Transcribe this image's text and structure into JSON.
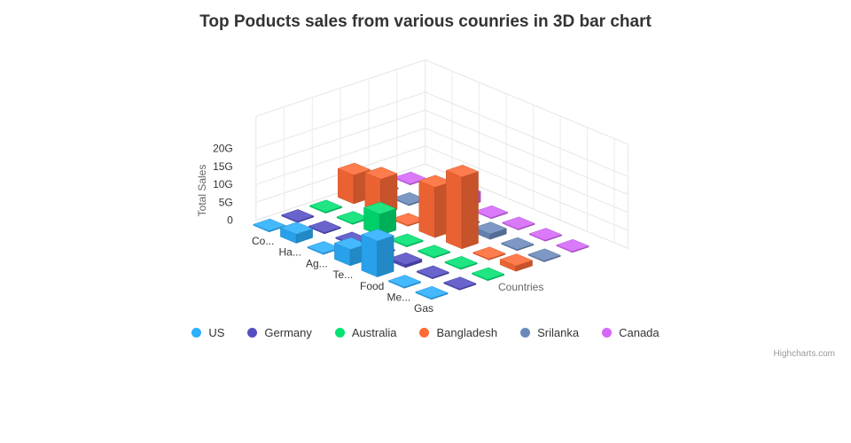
{
  "chart_data": {
    "type": "bar",
    "subtype": "3d-column",
    "title": "Top Poducts sales from various counries in 3D bar chart",
    "xlabel": "Countries",
    "ylabel": "Total Sales",
    "ylim": [
      0,
      20
    ],
    "yticks": [
      "0",
      "5G",
      "10G",
      "15G",
      "20G"
    ],
    "categories": [
      "Co...",
      "Ha...",
      "Ag...",
      "Te...",
      "Food",
      "Me...",
      "Gas"
    ],
    "series": [
      {
        "name": "US",
        "color": "#2caffe",
        "values": [
          0.3,
          2.5,
          0.3,
          4.5,
          10,
          0.3,
          0.3
        ]
      },
      {
        "name": "Germany",
        "color": "#544fc5",
        "values": [
          0.3,
          0.3,
          0.3,
          0.3,
          0.8,
          0.3,
          0.3
        ]
      },
      {
        "name": "Australia",
        "color": "#00e272",
        "values": [
          0.3,
          0.3,
          6,
          0.3,
          0.3,
          0.3,
          0.3
        ]
      },
      {
        "name": "Bangladesh",
        "color": "#fe6a35",
        "values": [
          8,
          10,
          0.3,
          14,
          20,
          0.3,
          1.5
        ]
      },
      {
        "name": "Srilanka",
        "color": "#6b8abc",
        "values": [
          0.3,
          0.3,
          0.3,
          0.3,
          1.5,
          0.3,
          0.3
        ]
      },
      {
        "name": "Canada",
        "color": "#d568fb",
        "values": [
          0.3,
          0.3,
          3,
          0.3,
          0.3,
          0.3,
          0.3
        ]
      }
    ],
    "legend_position": "bottom-center",
    "grid": true
  },
  "credits": "Highcharts.com"
}
